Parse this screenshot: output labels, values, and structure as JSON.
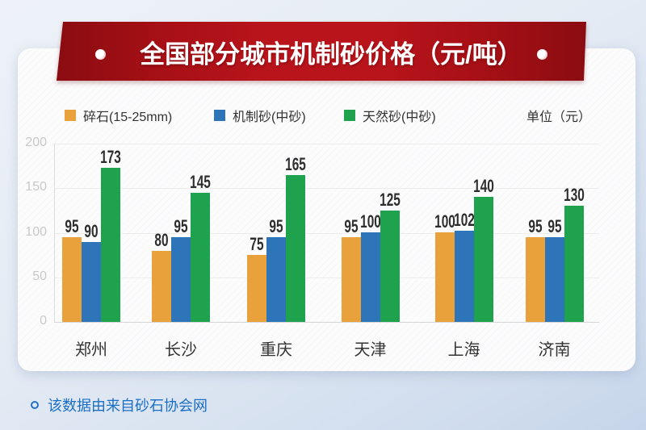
{
  "title": "全国部分城市机制砂价格（元/吨）",
  "unit_label": "单位（元）",
  "note": "该数据由来自砂石协会网",
  "colors": {
    "crushed": "#E9A23B",
    "machine": "#2E74B9",
    "natural": "#1EA24D",
    "banner_red": "#B9141C",
    "note_blue": "#1B6EC5"
  },
  "chart_data": {
    "type": "bar",
    "categories": [
      "郑州",
      "长沙",
      "重庆",
      "天津",
      "上海",
      "济南"
    ],
    "series": [
      {
        "name": "碎石(15-25mm)",
        "color_key": "crushed",
        "values": [
          95,
          80,
          75,
          95,
          100,
          95
        ]
      },
      {
        "name": "机制砂(中砂)",
        "color_key": "machine",
        "values": [
          90,
          95,
          95,
          100,
          102,
          95
        ]
      },
      {
        "name": "天然砂(中砂)",
        "color_key": "natural",
        "values": [
          173,
          145,
          165,
          125,
          140,
          130
        ]
      }
    ],
    "yticks": [
      0,
      50,
      100,
      150,
      200
    ],
    "ylim": [
      0,
      200
    ],
    "grid": true,
    "legend_position": "top"
  }
}
